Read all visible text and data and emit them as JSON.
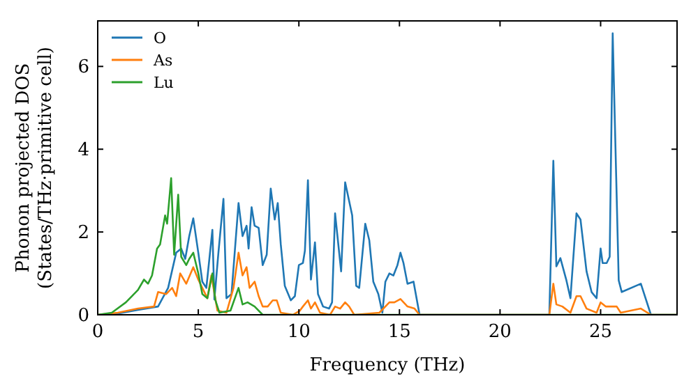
{
  "chart_data": {
    "type": "line",
    "xlabel": "Frequency (THz)",
    "ylabel": "Phonon projected DOS\n(States/THz·primitive cell)",
    "xlim": [
      0,
      28.8
    ],
    "xticks": [
      0,
      5,
      10,
      15,
      20,
      25
    ],
    "ylim": [
      0,
      7.1
    ],
    "yticks": [
      0,
      2,
      4,
      6
    ],
    "grid": false,
    "legend": "top left",
    "marker": "none",
    "line_style": "solid",
    "series": [
      {
        "name": "O",
        "color": "#1f77b4",
        "x": [
          0,
          1,
          2,
          3,
          3.5,
          3.9,
          4.15,
          4.35,
          4.55,
          4.75,
          5,
          5.2,
          5.4,
          5.7,
          5.8,
          6,
          6.25,
          6.4,
          6.65,
          7,
          7.2,
          7.4,
          7.5,
          7.65,
          7.8,
          8,
          8.2,
          8.4,
          8.6,
          8.8,
          8.95,
          9.1,
          9.3,
          9.6,
          9.8,
          10,
          10.2,
          10.3,
          10.45,
          10.6,
          10.8,
          10.95,
          11.2,
          11.5,
          11.65,
          11.8,
          12.1,
          12.3,
          12.65,
          12.85,
          13,
          13.3,
          13.5,
          13.7,
          13.95,
          14.15,
          14.3,
          14.5,
          14.7,
          14.9,
          15.05,
          15.2,
          15.4,
          15.7,
          16,
          22.45,
          22.65,
          22.8,
          23,
          23.3,
          23.5,
          23.8,
          24,
          24.3,
          24.55,
          24.8,
          25,
          25.1,
          25.3,
          25.45,
          25.6,
          25.9,
          26.05,
          27,
          27.5,
          28.8
        ],
        "values": [
          0,
          0.03,
          0.12,
          0.2,
          0.65,
          1.5,
          1.6,
          1.35,
          1.9,
          2.33,
          1.5,
          0.8,
          0.65,
          2.05,
          0.37,
          1.5,
          2.8,
          0.4,
          0.5,
          2.7,
          1.9,
          2.15,
          1.6,
          2.6,
          2.15,
          2.1,
          1.2,
          1.45,
          3.05,
          2.3,
          2.7,
          1.7,
          0.7,
          0.35,
          0.45,
          1.2,
          1.25,
          1.55,
          3.25,
          0.85,
          1.75,
          0.5,
          0.2,
          0.15,
          0.3,
          2.45,
          1.05,
          3.2,
          2.4,
          0.7,
          0.65,
          2.2,
          1.8,
          0.8,
          0.5,
          0.05,
          0.8,
          1,
          0.95,
          1.2,
          1.5,
          1.25,
          0.75,
          0.8,
          0,
          0,
          3.72,
          1.17,
          1.37,
          0.83,
          0.4,
          2.45,
          2.3,
          1.05,
          0.55,
          0.4,
          1.6,
          1.25,
          1.25,
          1.4,
          6.8,
          0.83,
          0.55,
          0.75,
          0,
          0
        ]
      },
      {
        "name": "As",
        "color": "#ff7f0e",
        "x": [
          0,
          1,
          2,
          2.8,
          3,
          3.4,
          3.7,
          3.9,
          4.1,
          4.4,
          4.75,
          5,
          5.2,
          5.45,
          5.65,
          5.95,
          6.4,
          6.75,
          7,
          7.2,
          7.4,
          7.55,
          7.8,
          8,
          8.2,
          8.45,
          8.7,
          8.9,
          9.1,
          9.7,
          10.05,
          10.2,
          10.45,
          10.6,
          10.8,
          11.05,
          11.55,
          11.8,
          12.05,
          12.3,
          12.5,
          12.75,
          14,
          14.5,
          14.75,
          15.05,
          15.4,
          15.75,
          16,
          22.45,
          22.65,
          22.8,
          23.1,
          23.5,
          23.8,
          24,
          24.3,
          24.8,
          25,
          25.25,
          25.8,
          26,
          27,
          27.5,
          28.8
        ],
        "values": [
          0,
          0.05,
          0.15,
          0.2,
          0.55,
          0.5,
          0.65,
          0.45,
          1,
          0.75,
          1.15,
          0.85,
          0.65,
          0.4,
          0.95,
          0.1,
          0.05,
          0.65,
          1.5,
          0.95,
          1.15,
          0.65,
          0.8,
          0.45,
          0.2,
          0.2,
          0.35,
          0.35,
          0.05,
          0,
          0.1,
          0.2,
          0.35,
          0.15,
          0.3,
          0.05,
          0,
          0.2,
          0.15,
          0.3,
          0.2,
          0,
          0.05,
          0.3,
          0.3,
          0.38,
          0.2,
          0.15,
          0,
          0,
          0.75,
          0.25,
          0.2,
          0.05,
          0.45,
          0.45,
          0.15,
          0.05,
          0.3,
          0.2,
          0.2,
          0.05,
          0.15,
          0,
          0
        ]
      },
      {
        "name": "Lu",
        "color": "#2ca02c",
        "x": [
          0,
          0.7,
          1.4,
          2,
          2.3,
          2.5,
          2.7,
          2.95,
          3.1,
          3.35,
          3.45,
          3.65,
          3.8,
          4,
          4.15,
          4.4,
          4.55,
          4.75,
          5,
          5.2,
          5.45,
          5.7,
          5.85,
          6.05,
          6.6,
          7,
          7.2,
          7.45,
          7.8,
          8.2,
          28.8
        ],
        "values": [
          0,
          0.05,
          0.3,
          0.6,
          0.85,
          0.75,
          0.95,
          1.6,
          1.7,
          2.4,
          2.2,
          3.3,
          1.45,
          2.9,
          1.4,
          1.2,
          1.35,
          1.5,
          1,
          0.5,
          0.4,
          1,
          0.35,
          0.05,
          0.1,
          0.65,
          0.25,
          0.3,
          0.2,
          0,
          0
        ]
      }
    ]
  }
}
